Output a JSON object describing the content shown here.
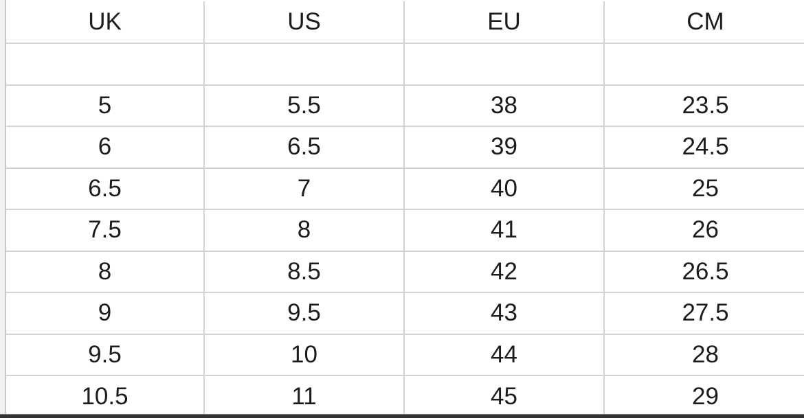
{
  "table": {
    "headers": [
      "UK",
      "US",
      "EU",
      "CM"
    ],
    "rows": [
      [
        "",
        "",
        "",
        ""
      ],
      [
        "5",
        "5.5",
        "38",
        "23.5"
      ],
      [
        "6",
        "6.5",
        "39",
        "24.5"
      ],
      [
        "6.5",
        "7",
        "40",
        "25"
      ],
      [
        "7.5",
        "8",
        "41",
        "26"
      ],
      [
        "8",
        "8.5",
        "42",
        "26.5"
      ],
      [
        "9",
        "9.5",
        "43",
        "27.5"
      ],
      [
        "9.5",
        "10",
        "44",
        "28"
      ],
      [
        "10.5",
        "11",
        "45",
        "29"
      ]
    ]
  }
}
